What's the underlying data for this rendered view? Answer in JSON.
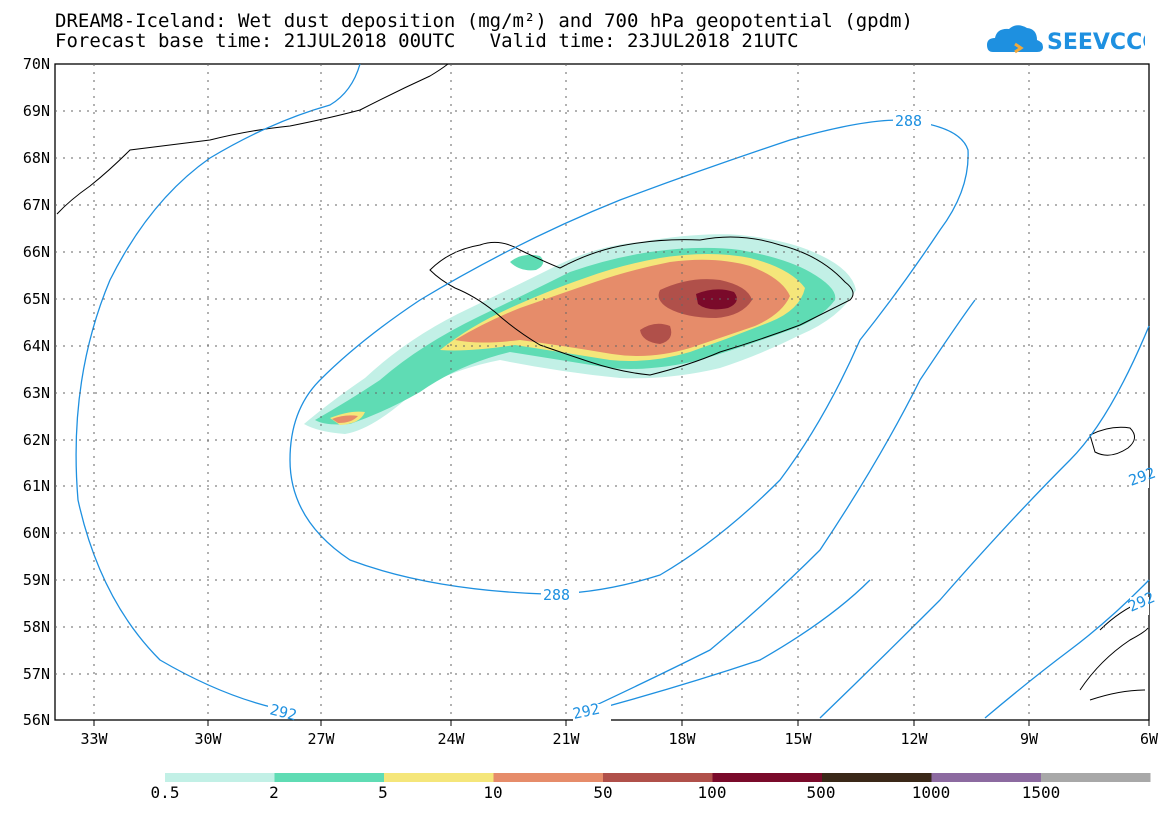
{
  "title": {
    "line1": "DREAM8-Iceland: Wet dust deposition (mg/m²) and 700 hPa geopotential (gpdm)",
    "line2": "Forecast base time: 21JUL2018 00UTC   Valid time: 23JUL2018 21UTC"
  },
  "logo": {
    "text": "SEEVCCC",
    "icon": "cloud-logo-icon",
    "color": "#1e90e0"
  },
  "axes": {
    "lat_labels": [
      "70N",
      "69N",
      "68N",
      "67N",
      "66N",
      "65N",
      "64N",
      "63N",
      "62N",
      "61N",
      "60N",
      "59N",
      "58N",
      "57N",
      "56N"
    ],
    "lon_labels": [
      "33W",
      "30W",
      "27W",
      "24W",
      "21W",
      "18W",
      "15W",
      "12W",
      "9W",
      "6W"
    ]
  },
  "contours": {
    "color": "#1e90e0",
    "labels": [
      "288",
      "288",
      "292",
      "292",
      "292",
      "292"
    ]
  },
  "legend": {
    "colors": [
      "#c2f0e6",
      "#5fdcb4",
      "#f5e67a",
      "#e68c6a",
      "#b0504a",
      "#7a0a2a",
      "#3a2818",
      "#8c6aa0",
      "#a8a8a8"
    ],
    "labels": [
      "0.5",
      "2",
      "5",
      "10",
      "50",
      "100",
      "500",
      "1000",
      "1500"
    ]
  }
}
